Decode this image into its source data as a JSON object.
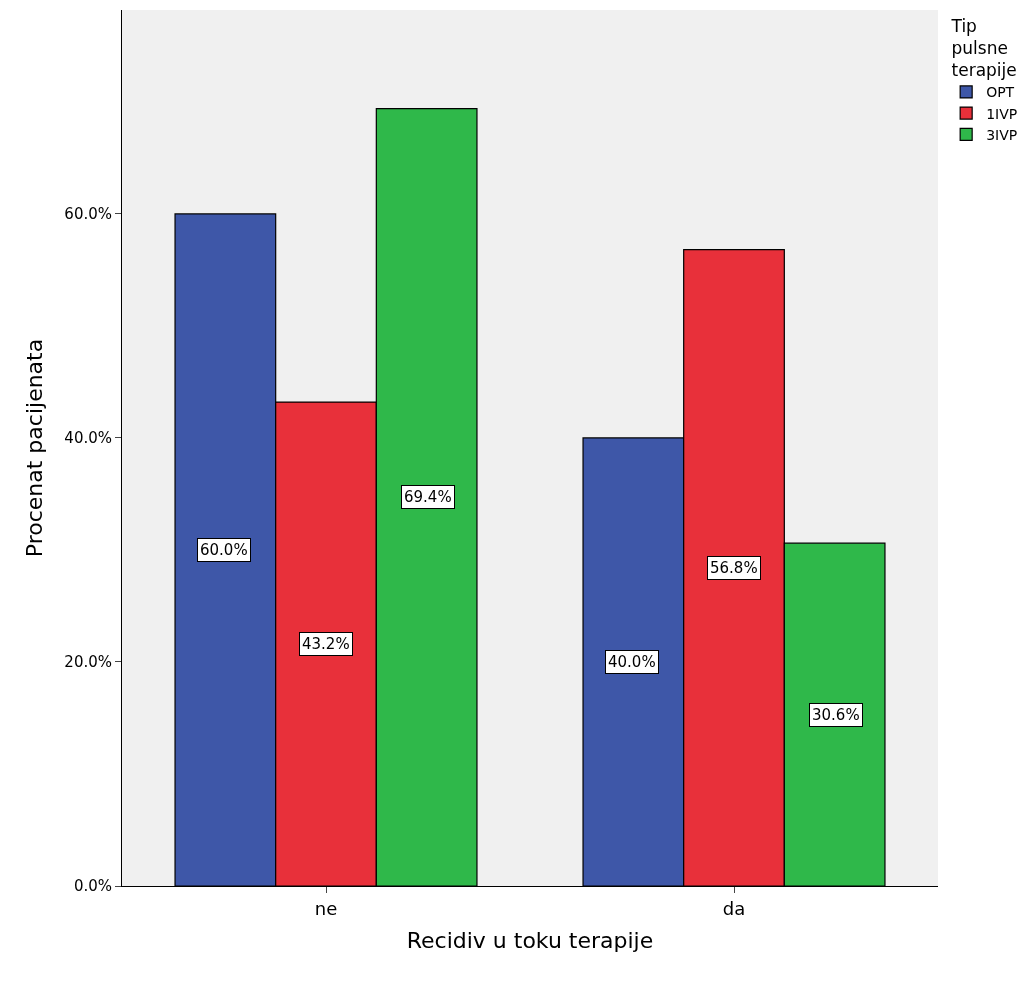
{
  "chart_data": {
    "type": "bar",
    "xlabel": "Recidiv u toku terapije",
    "ylabel": "Procenat pacijenata",
    "legend_title": "Tip pulsne terapije",
    "categories": [
      "ne",
      "da"
    ],
    "series": [
      {
        "name": "OPT",
        "color": "#3e57a8",
        "values": [
          60.0,
          40.0
        ],
        "value_labels": [
          "60.0%",
          "40.0%"
        ]
      },
      {
        "name": "1IVP",
        "color": "#e8303a",
        "values": [
          43.2,
          56.8
        ],
        "value_labels": [
          "43.2%",
          "56.8%"
        ]
      },
      {
        "name": "3IVP",
        "color": "#2fb84a",
        "values": [
          69.4,
          30.6
        ],
        "value_labels": [
          "69.4%",
          "30.6%"
        ]
      }
    ],
    "ylim": [
      0,
      78.2
    ],
    "yticks": [
      {
        "value": 0,
        "label": "0.0%"
      },
      {
        "value": 20,
        "label": "20.0%"
      },
      {
        "value": 40,
        "label": "40.0%"
      },
      {
        "value": 60,
        "label": "60.0%"
      }
    ],
    "grid": false,
    "legend": "top right"
  }
}
